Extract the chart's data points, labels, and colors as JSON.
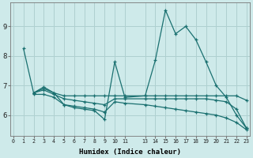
{
  "xlabel": "Humidex (Indice chaleur)",
  "background_color": "#ceeaea",
  "grid_color": "#afd0d0",
  "line_color": "#1a7070",
  "ylim": [
    5.3,
    9.8
  ],
  "yticks": [
    6,
    7,
    8,
    9
  ],
  "xlim": [
    -0.3,
    23.3
  ],
  "x_ticks": [
    0,
    1,
    2,
    3,
    4,
    5,
    6,
    7,
    8,
    9,
    10,
    11,
    13,
    14,
    15,
    16,
    17,
    18,
    19,
    20,
    21,
    22,
    23
  ],
  "x_tick_labels": [
    "0",
    "1",
    "2",
    "3",
    "4",
    "5",
    "6",
    "7",
    "8",
    "9",
    "10",
    "11",
    "13",
    "14",
    "15",
    "16",
    "17",
    "18",
    "19",
    "20",
    "21",
    "22",
    "23"
  ],
  "lines": [
    {
      "x": [
        1,
        2,
        3,
        4,
        5,
        6,
        7,
        8,
        9,
        10,
        11,
        13,
        14,
        15,
        16,
        17,
        18,
        19,
        20,
        21,
        22,
        23
      ],
      "y": [
        8.25,
        6.75,
        6.95,
        6.75,
        6.35,
        6.25,
        6.2,
        6.15,
        5.85,
        7.8,
        6.6,
        6.65,
        7.85,
        9.55,
        8.75,
        9.0,
        8.55,
        7.8,
        7.0,
        6.6,
        6.0,
        5.55
      ]
    },
    {
      "x": [
        2,
        3,
        4,
        5,
        6,
        7,
        8,
        9,
        10,
        11,
        13,
        14,
        15,
        16,
        17,
        18,
        19,
        20,
        21,
        22,
        23
      ],
      "y": [
        6.75,
        6.9,
        6.75,
        6.65,
        6.65,
        6.65,
        6.65,
        6.65,
        6.65,
        6.65,
        6.65,
        6.65,
        6.65,
        6.65,
        6.65,
        6.65,
        6.65,
        6.65,
        6.65,
        6.65,
        6.5
      ]
    },
    {
      "x": [
        2,
        3,
        4,
        5,
        6,
        7,
        8,
        9,
        10,
        11,
        13,
        14,
        15,
        16,
        17,
        18,
        19,
        20,
        21,
        22,
        23
      ],
      "y": [
        6.75,
        6.85,
        6.7,
        6.55,
        6.5,
        6.45,
        6.4,
        6.35,
        6.55,
        6.55,
        6.55,
        6.55,
        6.55,
        6.55,
        6.55,
        6.55,
        6.55,
        6.5,
        6.45,
        6.2,
        5.55
      ]
    },
    {
      "x": [
        2,
        3,
        4,
        5,
        6,
        7,
        8,
        9,
        10,
        11,
        13,
        14,
        15,
        16,
        17,
        18,
        19,
        20,
        21,
        22,
        23
      ],
      "y": [
        6.7,
        6.7,
        6.6,
        6.35,
        6.3,
        6.25,
        6.2,
        6.1,
        6.45,
        6.4,
        6.35,
        6.3,
        6.25,
        6.2,
        6.15,
        6.1,
        6.05,
        6.0,
        5.9,
        5.75,
        5.5
      ]
    }
  ]
}
